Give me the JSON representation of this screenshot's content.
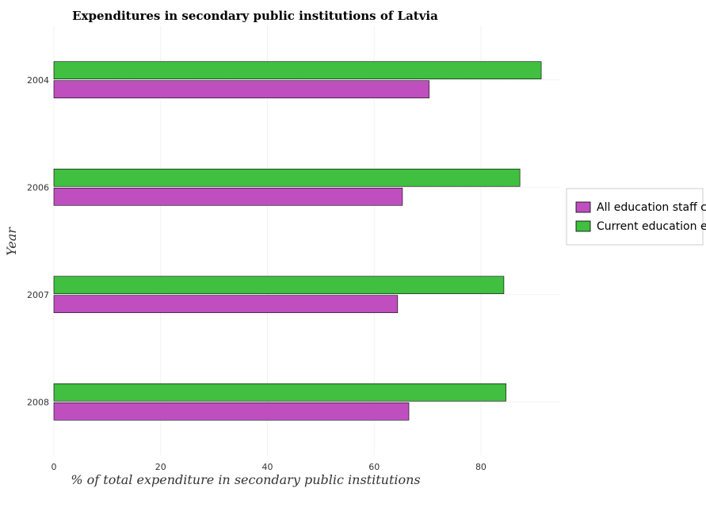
{
  "chart_data": {
    "type": "bar",
    "orientation": "horizontal",
    "title": "Expenditures in secondary public institutions of Latvia",
    "xlabel": "% of total expenditure in secondary public institutions",
    "ylabel": "Year",
    "categories": [
      "2004",
      "2006",
      "2007",
      "2008"
    ],
    "series": [
      {
        "name": "All education staff compensation",
        "color": "#bf4fbf",
        "values": [
          70.3,
          65.3,
          64.4,
          66.5
        ]
      },
      {
        "name": "Current education expenditure",
        "color": "#40bf40",
        "values": [
          91.3,
          87.3,
          84.3,
          84.7
        ]
      }
    ],
    "xlim": [
      0,
      95
    ],
    "xticks": [
      0,
      20,
      40,
      60,
      80
    ],
    "grid": true,
    "legend_position": "right"
  }
}
